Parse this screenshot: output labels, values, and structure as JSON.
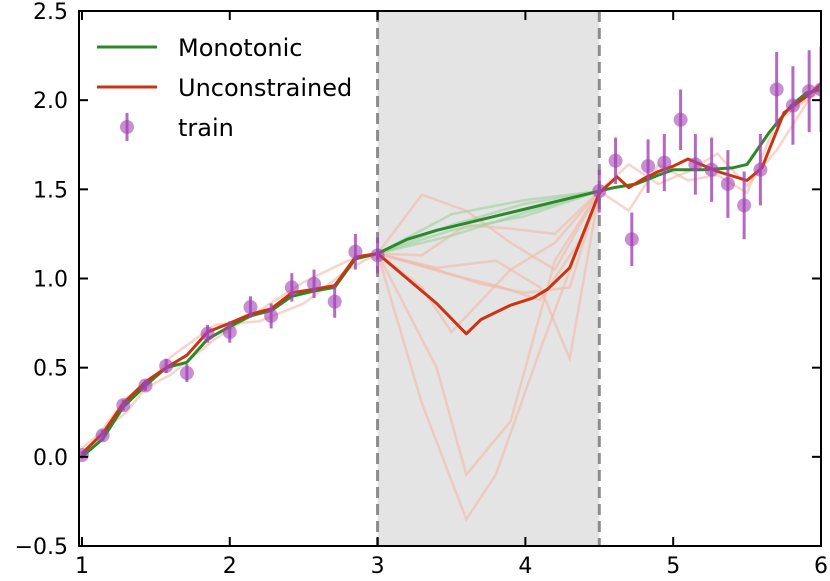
{
  "chart_data": {
    "type": "line",
    "title": "",
    "xlabel": "",
    "ylabel": "",
    "xlim": [
      0.98,
      6.0
    ],
    "ylim": [
      -0.5,
      2.5
    ],
    "x_ticks": [
      1,
      2,
      3,
      4,
      5,
      6
    ],
    "x_tick_labels": [
      "1",
      "2",
      "3",
      "4",
      "5",
      "6"
    ],
    "y_ticks": [
      -0.5,
      0.0,
      0.5,
      1.0,
      1.5,
      2.0,
      2.5
    ],
    "y_tick_labels": [
      "−0.5",
      "0.0",
      "0.5",
      "1.0",
      "1.5",
      "2.0",
      "2.5"
    ],
    "grid": false,
    "legend_position": "top-left",
    "shaded_region": {
      "x": [
        3.0,
        4.5
      ],
      "color": "#e4e4e4"
    },
    "vlines": [
      3.0,
      4.5
    ],
    "colors": {
      "monotonic": "#2a8a2a",
      "unconstrained": "#cc3311",
      "train": "#a243b4",
      "ensemble_monotonic": "#9fd09f",
      "ensemble_unconstrained": "#f2b9a8",
      "vline": "#8c8c8c"
    },
    "series": [
      {
        "name": "Monotonic",
        "kind": "line",
        "x": [
          1.0,
          1.14,
          1.28,
          1.43,
          1.57,
          1.71,
          1.85,
          2.0,
          2.14,
          2.28,
          2.42,
          2.57,
          2.71,
          2.85,
          3.0,
          3.2,
          3.4,
          3.6,
          3.8,
          4.0,
          4.2,
          4.4,
          4.5,
          4.6,
          4.75,
          4.9,
          5.0,
          5.2,
          5.4,
          5.5,
          5.65,
          5.8,
          5.9,
          6.0
        ],
        "y": [
          0.0,
          0.1,
          0.28,
          0.4,
          0.5,
          0.53,
          0.66,
          0.73,
          0.79,
          0.82,
          0.9,
          0.93,
          0.95,
          1.11,
          1.14,
          1.22,
          1.27,
          1.31,
          1.35,
          1.39,
          1.43,
          1.47,
          1.49,
          1.51,
          1.53,
          1.58,
          1.61,
          1.61,
          1.62,
          1.64,
          1.82,
          1.97,
          2.04,
          2.06
        ]
      },
      {
        "name": "Unconstrained",
        "kind": "line",
        "x": [
          1.0,
          1.14,
          1.28,
          1.43,
          1.57,
          1.71,
          1.85,
          2.0,
          2.14,
          2.28,
          2.42,
          2.57,
          2.71,
          2.85,
          3.0,
          3.2,
          3.4,
          3.6,
          3.7,
          3.9,
          4.05,
          4.15,
          4.3,
          4.5,
          4.62,
          4.7,
          4.8,
          4.9,
          5.0,
          5.1,
          5.3,
          5.5,
          5.6,
          5.75,
          5.9,
          6.0
        ],
        "y": [
          0.02,
          0.13,
          0.3,
          0.42,
          0.5,
          0.57,
          0.7,
          0.75,
          0.8,
          0.83,
          0.92,
          0.94,
          0.96,
          1.12,
          1.14,
          1.0,
          0.86,
          0.69,
          0.77,
          0.85,
          0.89,
          0.94,
          1.06,
          1.48,
          1.57,
          1.51,
          1.56,
          1.6,
          1.63,
          1.67,
          1.6,
          1.55,
          1.62,
          1.93,
          2.02,
          2.09
        ]
      },
      {
        "name": "train",
        "kind": "scatter_errorbar",
        "x": [
          1.0,
          1.14,
          1.28,
          1.43,
          1.57,
          1.71,
          1.85,
          2.0,
          2.14,
          2.28,
          2.42,
          2.57,
          2.71,
          2.85,
          3.0,
          4.5,
          4.61,
          4.72,
          4.83,
          4.94,
          5.05,
          5.15,
          5.26,
          5.37,
          5.48,
          5.59,
          5.7,
          5.81,
          5.92,
          6.0
        ],
        "y": [
          0.01,
          0.12,
          0.29,
          0.4,
          0.51,
          0.47,
          0.69,
          0.7,
          0.84,
          0.79,
          0.95,
          0.97,
          0.87,
          1.15,
          1.13,
          1.49,
          1.66,
          1.22,
          1.63,
          1.65,
          1.89,
          1.64,
          1.61,
          1.53,
          1.41,
          1.61,
          2.06,
          1.97,
          2.05,
          2.06
        ],
        "err": [
          0.02,
          0.03,
          0.03,
          0.03,
          0.04,
          0.05,
          0.05,
          0.06,
          0.06,
          0.07,
          0.08,
          0.08,
          0.09,
          0.1,
          0.1,
          0.12,
          0.13,
          0.15,
          0.15,
          0.16,
          0.17,
          0.17,
          0.18,
          0.19,
          0.19,
          0.2,
          0.21,
          0.22,
          0.23,
          0.24
        ]
      }
    ],
    "ensemble_unconstrained": [
      {
        "x": [
          3.0,
          3.4,
          3.6,
          3.9,
          4.2,
          4.5
        ],
        "y": [
          1.14,
          0.5,
          -0.1,
          0.2,
          1.1,
          1.49
        ]
      },
      {
        "x": [
          3.0,
          3.3,
          3.6,
          3.8,
          4.1,
          4.5
        ],
        "y": [
          1.14,
          0.3,
          -0.35,
          -0.1,
          0.6,
          1.49
        ]
      },
      {
        "x": [
          3.0,
          3.3,
          3.6,
          3.9,
          4.2,
          4.5
        ],
        "y": [
          1.14,
          1.47,
          1.38,
          1.2,
          1.05,
          1.49
        ]
      },
      {
        "x": [
          3.0,
          3.4,
          3.7,
          4.0,
          4.3,
          4.5
        ],
        "y": [
          1.14,
          1.05,
          0.97,
          0.92,
          0.95,
          1.49
        ]
      },
      {
        "x": [
          3.0,
          3.4,
          3.8,
          4.1,
          4.3,
          4.5
        ],
        "y": [
          1.14,
          1.06,
          1.1,
          0.95,
          0.55,
          1.49
        ]
      },
      {
        "x": [
          3.0,
          3.3,
          3.6,
          3.9,
          4.2,
          4.5
        ],
        "y": [
          1.14,
          1.13,
          1.3,
          1.28,
          1.25,
          1.49
        ]
      },
      {
        "x": [
          3.0,
          3.5,
          3.8,
          4.1,
          4.4,
          4.5
        ],
        "y": [
          1.14,
          1.02,
          0.96,
          0.88,
          1.25,
          1.49
        ]
      },
      {
        "x": [
          3.0,
          3.3,
          3.5,
          3.9,
          4.2,
          4.5
        ],
        "y": [
          1.14,
          0.95,
          0.7,
          1.05,
          1.2,
          1.49
        ]
      },
      {
        "x": [
          1.0,
          1.3,
          1.6,
          1.9,
          2.2,
          2.5,
          2.8,
          3.0
        ],
        "y": [
          0.05,
          0.25,
          0.56,
          0.74,
          0.76,
          0.86,
          1.05,
          1.14
        ]
      },
      {
        "x": [
          1.0,
          1.3,
          1.6,
          1.9,
          2.2,
          2.5,
          2.8,
          3.0
        ],
        "y": [
          0.0,
          0.33,
          0.46,
          0.66,
          0.82,
          0.98,
          1.1,
          1.14
        ]
      },
      {
        "x": [
          4.5,
          4.7,
          4.9,
          5.1,
          5.3,
          5.5,
          5.7,
          5.9,
          6.0
        ],
        "y": [
          1.49,
          1.64,
          1.53,
          1.6,
          1.7,
          1.52,
          1.72,
          1.98,
          2.1
        ]
      },
      {
        "x": [
          4.5,
          4.7,
          4.9,
          5.1,
          5.3,
          5.5,
          5.7,
          5.9,
          6.0
        ],
        "y": [
          1.49,
          1.38,
          1.64,
          1.55,
          1.58,
          1.48,
          1.88,
          2.0,
          2.05
        ]
      }
    ],
    "ensemble_monotonic": [
      {
        "x": [
          3.0,
          3.5,
          4.0,
          4.5
        ],
        "y": [
          1.14,
          1.36,
          1.44,
          1.49
        ]
      },
      {
        "x": [
          3.0,
          3.5,
          4.0,
          4.5
        ],
        "y": [
          1.14,
          1.24,
          1.37,
          1.49
        ]
      },
      {
        "x": [
          3.0,
          3.5,
          4.0,
          4.5
        ],
        "y": [
          1.14,
          1.3,
          1.42,
          1.49
        ]
      },
      {
        "x": [
          3.0,
          3.5,
          4.0,
          4.5
        ],
        "y": [
          1.14,
          1.27,
          1.35,
          1.49
        ]
      }
    ]
  },
  "legend": {
    "monotonic_label": "Monotonic",
    "unconstrained_label": "Unconstrained",
    "train_label": "train"
  }
}
